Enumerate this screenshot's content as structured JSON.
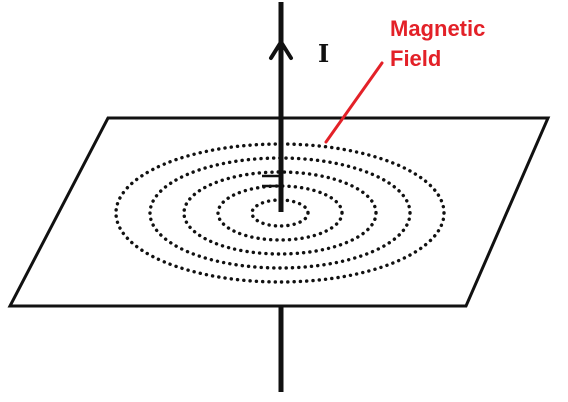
{
  "current_label": "I",
  "field_label_line1": "Magnetic",
  "field_label_line2": "Field",
  "colors": {
    "ink": "#111111",
    "label_red": "#e32128",
    "background": "#ffffff"
  },
  "field_rings": 5
}
